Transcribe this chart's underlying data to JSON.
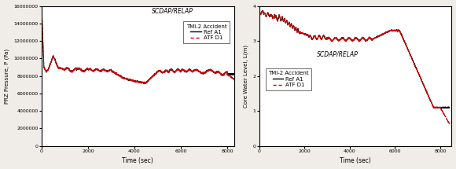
{
  "fig_width": 5.8,
  "fig_height": 2.15,
  "dpi": 100,
  "bg_color": "#f0ede8",
  "plot_bg": "#ffffff",
  "left_title": "SCDAP/RELAP",
  "left_subtitle": "TMI-2 Accident",
  "left_legend": [
    "Ref A1",
    "ATF D1"
  ],
  "left_xlabel": "Time (sec)",
  "left_ylabel": "PRZ Pressure, P (Pa)",
  "left_xlim": [
    0,
    8300
  ],
  "left_ylim": [
    0,
    16000000
  ],
  "left_yticks": [
    0,
    2000000,
    4000000,
    6000000,
    8000000,
    10000000,
    12000000,
    14000000,
    16000000
  ],
  "left_xticks": [
    0,
    2000,
    4000,
    6000,
    8000
  ],
  "right_title": "SCDAP/RELAP",
  "right_subtitle": "TMI-2 Accident",
  "right_legend": [
    "Ref A1",
    "ATF D1"
  ],
  "right_xlabel": "Time (sec)",
  "right_ylabel": "Core Water Level, L(m)",
  "right_xlim": [
    0,
    8500
  ],
  "right_ylim": [
    0,
    4
  ],
  "right_yticks": [
    0,
    1,
    2,
    3,
    4
  ],
  "right_xticks": [
    0,
    2000,
    4000,
    6000,
    8000
  ],
  "color_ref": "#000000",
  "color_atf": "#cc0000",
  "lw": 0.7
}
